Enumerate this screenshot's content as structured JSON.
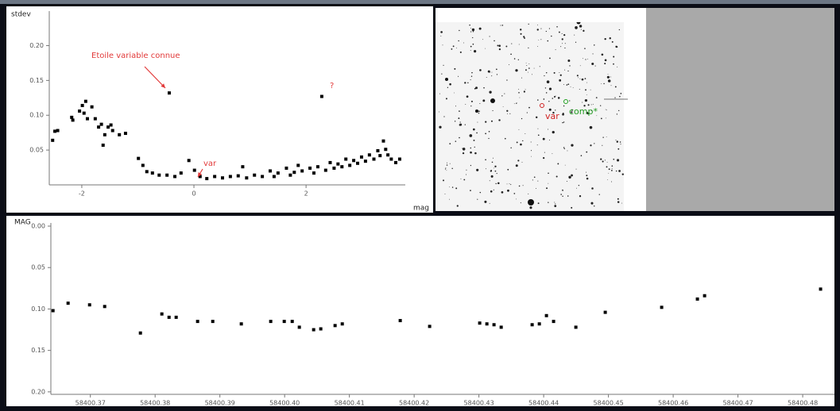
{
  "chart_data": [
    {
      "type": "scatter",
      "y_label": "stdev",
      "x_label": "mag",
      "color": "#000000",
      "xlim": [
        -2.58,
        3.77
      ],
      "ylim": [
        0,
        0.245
      ],
      "xticks": [
        -2,
        0,
        2
      ],
      "yticks": [
        0.05,
        {
          "value": 0.1,
          "label": "0.10"
        },
        0.15,
        {
          "value": 0.2,
          "label": "0.20"
        }
      ],
      "annotations": [
        "Etoile variable connue",
        "?",
        "var"
      ],
      "x": [
        -2.52,
        -2.48,
        -2.43,
        -2.18,
        -2.16,
        -2.04,
        -1.99,
        -1.93,
        -1.96,
        -1.9,
        -1.82,
        -1.76,
        -1.7,
        -1.65,
        -1.62,
        -1.59,
        -1.53,
        -1.48,
        -1.45,
        -1.33,
        -1.22,
        -0.99,
        -0.91,
        -0.84,
        -0.74,
        -0.62,
        -0.48,
        -0.44,
        -0.34,
        -0.23,
        -0.09,
        0.01,
        0.11,
        0.23,
        0.37,
        0.51,
        0.65,
        0.79,
        0.87,
        0.94,
        1.08,
        1.22,
        1.36,
        1.43,
        1.5,
        1.65,
        1.72,
        1.79,
        1.86,
        1.93,
        2.07,
        2.14,
        2.21,
        2.28,
        2.35,
        2.43,
        2.5,
        2.57,
        2.64,
        2.71,
        2.78,
        2.85,
        2.92,
        2.99,
        3.06,
        3.13,
        3.21,
        3.28,
        3.32,
        3.38,
        3.42,
        3.46,
        3.52,
        3.6,
        3.67
      ],
      "values": [
        0.064,
        0.077,
        0.078,
        0.097,
        0.093,
        0.106,
        0.114,
        0.12,
        0.103,
        0.095,
        0.112,
        0.095,
        0.083,
        0.087,
        0.057,
        0.072,
        0.083,
        0.086,
        0.078,
        0.072,
        0.074,
        0.038,
        0.028,
        0.019,
        0.017,
        0.014,
        0.014,
        0.132,
        0.012,
        0.017,
        0.035,
        0.021,
        0.012,
        0.009,
        0.012,
        0.01,
        0.012,
        0.013,
        0.026,
        0.01,
        0.014,
        0.012,
        0.02,
        0.012,
        0.017,
        0.024,
        0.014,
        0.018,
        0.028,
        0.02,
        0.024,
        0.017,
        0.026,
        0.127,
        0.021,
        0.032,
        0.024,
        0.03,
        0.026,
        0.037,
        0.028,
        0.035,
        0.031,
        0.04,
        0.034,
        0.043,
        0.037,
        0.049,
        0.042,
        0.063,
        0.051,
        0.043,
        0.037,
        0.032,
        0.037
      ]
    },
    {
      "type": "scatter",
      "y_label": "MAG",
      "color": "#000000",
      "y_inverted": true,
      "xlim": [
        58400.3639,
        58400.4849
      ],
      "ylim": [
        0,
        0.203
      ],
      "xticks": [
        58400.37,
        58400.38,
        58400.39,
        {
          "value": 58400.4,
          "label": "58400.40"
        },
        58400.41,
        58400.42,
        58400.43,
        58400.44,
        58400.45,
        58400.46,
        58400.47,
        58400.48
      ],
      "yticks": [
        {
          "value": 0,
          "label": "0.00"
        },
        0.05,
        {
          "value": 0.1,
          "label": "0.10"
        },
        0.15,
        {
          "value": 0.2,
          "label": "0.20"
        }
      ],
      "x": [
        58400.36423,
        58400.36656,
        58400.36988,
        58400.37221,
        58400.37773,
        58400.38104,
        58400.38215,
        58400.38325,
        58400.38656,
        58400.3889,
        58400.39331,
        58400.39785,
        58400.39994,
        58400.40117,
        58400.40227,
        58400.40448,
        58400.40558,
        58400.40779,
        58400.4089,
        58400.41785,
        58400.42239,
        58400.43012,
        58400.43123,
        58400.43233,
        58400.43344,
        58400.43822,
        58400.43933,
        58400.44043,
        58400.44153,
        58400.44497,
        58400.44951,
        58400.45822,
        58400.46374,
        58400.46485,
        58400.48276
      ],
      "values": [
        0.102,
        0.093,
        0.095,
        0.097,
        0.129,
        0.106,
        0.11,
        0.11,
        0.115,
        0.115,
        0.118,
        0.115,
        0.115,
        0.115,
        0.122,
        0.125,
        0.124,
        0.12,
        0.118,
        0.114,
        0.121,
        0.117,
        0.118,
        0.119,
        0.122,
        0.119,
        0.118,
        0.108,
        0.115,
        0.122,
        0.104,
        0.098,
        0.088,
        0.084,
        0.076
      ]
    }
  ],
  "image_labels": [
    "var",
    "comp*"
  ]
}
